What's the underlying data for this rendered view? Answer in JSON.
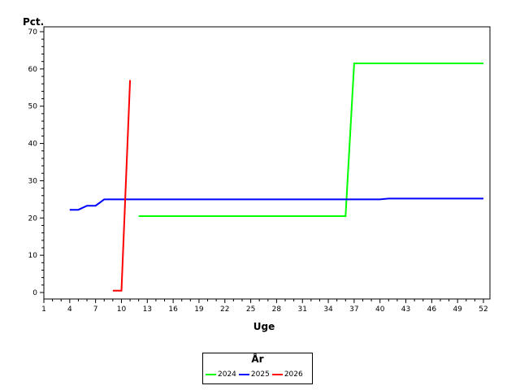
{
  "chart_data": {
    "type": "line",
    "ylabel": "Pct.",
    "xlabel": "Uge",
    "xlim": [
      1,
      52
    ],
    "ylim": [
      0,
      70
    ],
    "x_ticks": [
      1,
      4,
      7,
      10,
      13,
      16,
      19,
      22,
      25,
      28,
      31,
      34,
      37,
      40,
      43,
      46,
      49,
      52
    ],
    "y_ticks": [
      0,
      10,
      20,
      30,
      40,
      50,
      60,
      70
    ],
    "grid": false,
    "legend": {
      "title": "År",
      "placement": "bottom-center"
    },
    "series": [
      {
        "name": "2024",
        "color": "#00ff00",
        "points": [
          [
            12,
            20.5
          ],
          [
            36,
            20.5
          ],
          [
            37,
            61.5
          ],
          [
            52,
            61.5
          ]
        ]
      },
      {
        "name": "2025",
        "color": "#0000ff",
        "points": [
          [
            4,
            22.2
          ],
          [
            5,
            22.2
          ],
          [
            6,
            23.3
          ],
          [
            7,
            23.3
          ],
          [
            8,
            25.0
          ],
          [
            40,
            25.0
          ],
          [
            41,
            25.2
          ],
          [
            52,
            25.2
          ]
        ]
      },
      {
        "name": "2026",
        "color": "#ff0000",
        "points": [
          [
            9,
            0.5
          ],
          [
            10,
            0.5
          ],
          [
            11,
            57.0
          ]
        ]
      }
    ]
  }
}
